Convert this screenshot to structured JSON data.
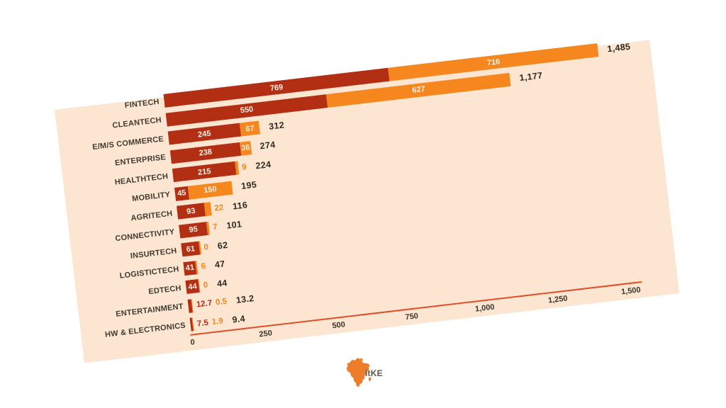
{
  "chart_data": {
    "type": "bar",
    "orientation": "horizontal",
    "stacked": true,
    "title": "",
    "categories": [
      "FINTECH",
      "CLEANTECH",
      "E/M/S COMMERCE",
      "ENTERPRISE",
      "HEALTHTECH",
      "MOBILITY",
      "AGRITECH",
      "CONNECTIVITY",
      "INSURTECH",
      "LOGISTICTECH",
      "EDTECH",
      "ENTERTAINMENT",
      "HW & ELECTRONICS"
    ],
    "series": [
      {
        "name": "dark-red-segment",
        "color": "#b22f14",
        "values": [
          769,
          550,
          245,
          238,
          215,
          45,
          93,
          95,
          61,
          41,
          44,
          12.7,
          7.5
        ],
        "labels": [
          "769",
          "550",
          "245",
          "238",
          "215",
          "45",
          "93",
          "95",
          "61",
          "41",
          "44",
          "12.7",
          "7.5"
        ]
      },
      {
        "name": "orange-segment",
        "color": "#f6871e",
        "values": [
          716,
          627,
          67,
          36,
          9,
          150,
          22,
          7,
          0,
          6,
          0,
          0.5,
          1.9
        ],
        "labels": [
          "716",
          "627",
          "67",
          "36",
          "9",
          "150",
          "22",
          "7",
          "0",
          "6",
          "0",
          "0.5",
          "1.9"
        ]
      }
    ],
    "totals": [
      "1,485",
      "1,177",
      "312",
      "274",
      "224",
      "195",
      "116",
      "101",
      "62",
      "47",
      "44",
      "13.2",
      "9.4"
    ],
    "x_ticks": [
      {
        "value": 0,
        "label": "0"
      },
      {
        "value": 250,
        "label": "250"
      },
      {
        "value": 500,
        "label": "500"
      },
      {
        "value": 750,
        "label": "750"
      },
      {
        "value": 1000,
        "label": "1,000"
      },
      {
        "value": 1250,
        "label": "1,250"
      },
      {
        "value": 1500,
        "label": "1,500"
      }
    ],
    "xlim": [
      0,
      1500
    ],
    "grid": false,
    "legend_position": "none",
    "axis_line_color": "#e14e28",
    "panel_color": "#fce5d1",
    "rotation_deg": -6.7
  },
  "logo": {
    "text": "itKE",
    "map_color": "#ed7d2b",
    "text_color": "#5a544c"
  }
}
